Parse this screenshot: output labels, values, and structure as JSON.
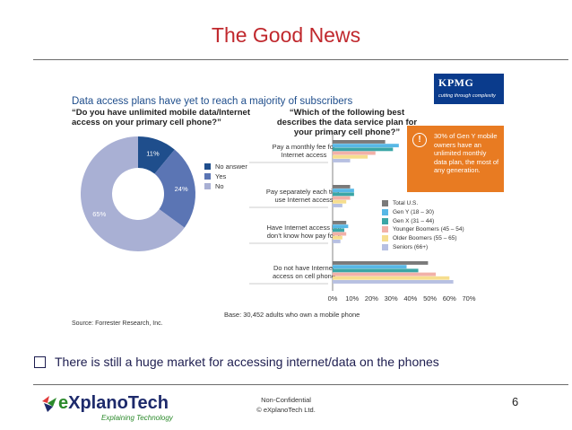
{
  "slide": {
    "title": "The Good News",
    "page_number": "6",
    "bullet": "There is still a huge market for accessing internet/data on the phones",
    "footer": {
      "confidential": "Non-Confidential",
      "copyright": "© eXplanoTech Ltd.",
      "logo_e": "e",
      "logo_rest": "XplanoTech",
      "logo_tagline": "Explaining Technology"
    }
  },
  "figure": {
    "subtitle": "Data access plans have yet to reach a majority of subscribers",
    "kpmg_logo": "KPMG",
    "kpmg_tagline": "cutting through complexity",
    "callout": "30% of Gen Y mobile owners have an unlimited monthly data plan, the most of any generation.",
    "callout_icon": "!",
    "base_note": "Base: 30,452 adults who own a mobile phone",
    "source": "Source: Forrester Research, Inc."
  },
  "chart_data": [
    {
      "type": "pie",
      "style": "donut",
      "title": "“Do you have unlimited mobile data/Internet access on your primary cell phone?”",
      "categories": [
        "No answer",
        "Yes",
        "No"
      ],
      "values": [
        11,
        24,
        65
      ],
      "labels": [
        "11%",
        "24%",
        "65%"
      ],
      "colors": [
        "#1f4e8c",
        "#5b75b4",
        "#a9b0d4"
      ]
    },
    {
      "type": "bar",
      "orientation": "horizontal",
      "title": "“Which of the following best describes the data service plan for your primary cell phone?”",
      "categories": [
        "Pay a monthly fee for Internet access",
        "Pay separately each time use Internet access",
        "Have Internet access but don’t know how pay for it",
        "Do not have Internet access on cell phone"
      ],
      "category_lines": [
        [
          "Pay a monthly fee for",
          "Internet access"
        ],
        [
          "Pay separately each time",
          "use Internet access"
        ],
        [
          "Have Internet access but",
          "don’t know how pay for it"
        ],
        [
          "Do not have Internet",
          "access on cell phone"
        ]
      ],
      "xlim": [
        0,
        70
      ],
      "xticks": [
        "0%",
        "10%",
        "20%",
        "30%",
        "40%",
        "50%",
        "60%",
        "70%"
      ],
      "series": [
        {
          "name": "Total U.S.",
          "color": "#7a7a7a",
          "values": [
            27,
            9,
            7,
            49
          ]
        },
        {
          "name": "Gen Y (18 – 30)",
          "color": "#58b8e6",
          "values": [
            34,
            11,
            8,
            38
          ]
        },
        {
          "name": "Gen X (31 – 44)",
          "color": "#3aa6a6",
          "values": [
            31,
            11,
            6,
            44
          ]
        },
        {
          "name": "Younger Boomers (45 – 54)",
          "color": "#f2b1a8",
          "values": [
            22,
            9,
            7,
            53
          ]
        },
        {
          "name": "Older Boomers (55 – 65)",
          "color": "#f6de8e",
          "values": [
            18,
            7,
            5,
            60
          ]
        },
        {
          "name": "Seniors (66+)",
          "color": "#b7c0e2",
          "values": [
            9,
            5,
            4,
            62
          ]
        }
      ]
    }
  ]
}
